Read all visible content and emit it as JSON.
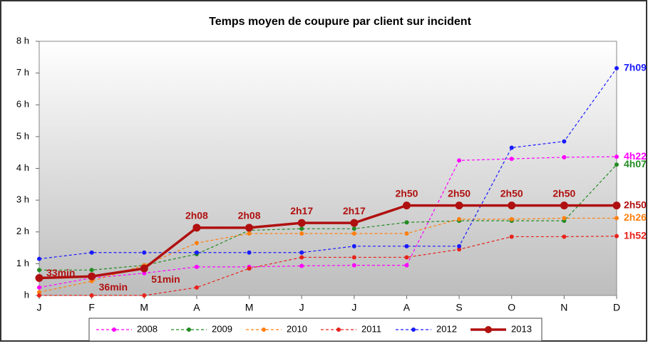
{
  "chart_data": {
    "type": "line",
    "title": "Temps moyen de coupure par client sur incident",
    "categories": [
      "J",
      "F",
      "M",
      "A",
      "M",
      "J",
      "J",
      "A",
      "S",
      "O",
      "N",
      "D"
    ],
    "ylim": [
      0,
      8
    ],
    "yticks": [
      {
        "value": 0,
        "label": "h"
      },
      {
        "value": 1,
        "label": "1 h"
      },
      {
        "value": 2,
        "label": "2 h"
      },
      {
        "value": 3,
        "label": "3 h"
      },
      {
        "value": 4,
        "label": "4 h"
      },
      {
        "value": 5,
        "label": "5 h"
      },
      {
        "value": 6,
        "label": "6 h"
      },
      {
        "value": 7,
        "label": "7 h"
      },
      {
        "value": 8,
        "label": "8 h"
      }
    ],
    "grid": false,
    "legend": "bottom",
    "series": [
      {
        "name": "2008",
        "color": "#ff00ff",
        "dash": true,
        "values": [
          0.25,
          0.55,
          0.7,
          0.9,
          0.9,
          0.93,
          0.95,
          0.95,
          4.25,
          4.3,
          4.35,
          4.367
        ],
        "value_labels": [
          null,
          null,
          null,
          null,
          null,
          null,
          null,
          null,
          null,
          null,
          null,
          "4h22"
        ]
      },
      {
        "name": "2009",
        "color": "#228b22",
        "dash": true,
        "values": [
          0.8,
          0.8,
          0.95,
          1.3,
          2.05,
          2.1,
          2.1,
          2.3,
          2.35,
          2.35,
          2.35,
          4.117
        ],
        "value_labels": [
          null,
          null,
          null,
          null,
          null,
          null,
          null,
          null,
          null,
          null,
          null,
          "4h07"
        ]
      },
      {
        "name": "2010",
        "color": "#ff7f0e",
        "dash": true,
        "values": [
          0.1,
          0.45,
          0.95,
          1.65,
          1.95,
          1.95,
          1.95,
          1.95,
          2.4,
          2.4,
          2.433,
          2.433
        ],
        "value_labels": [
          null,
          null,
          null,
          null,
          null,
          null,
          null,
          null,
          null,
          null,
          null,
          "2h26"
        ]
      },
      {
        "name": "2011",
        "color": "#e8221c",
        "dash": true,
        "values": [
          0,
          0,
          0,
          0.25,
          0.85,
          1.2,
          1.2,
          1.2,
          1.45,
          1.85,
          1.85,
          1.867
        ],
        "value_labels": [
          null,
          null,
          null,
          null,
          null,
          null,
          null,
          null,
          null,
          null,
          null,
          "1h52"
        ]
      },
      {
        "name": "2012",
        "color": "#1a1aff",
        "dash": true,
        "values": [
          1.15,
          1.35,
          1.35,
          1.35,
          1.35,
          1.35,
          1.55,
          1.55,
          1.55,
          4.65,
          4.85,
          7.15
        ],
        "value_labels": [
          null,
          null,
          null,
          null,
          null,
          null,
          null,
          null,
          null,
          null,
          null,
          "7h09"
        ]
      },
      {
        "name": "2013",
        "color": "#b01010",
        "dash": false,
        "values": [
          0.55,
          0.6,
          0.85,
          2.133,
          2.133,
          2.283,
          2.283,
          2.833,
          2.833,
          2.833,
          2.833,
          2.833
        ],
        "value_labels": [
          "33min",
          "36min",
          "51min",
          "2h08",
          "2h08",
          "2h17",
          "2h17",
          "2h50",
          "2h50",
          "2h50",
          "2h50",
          "2h50"
        ]
      }
    ]
  }
}
